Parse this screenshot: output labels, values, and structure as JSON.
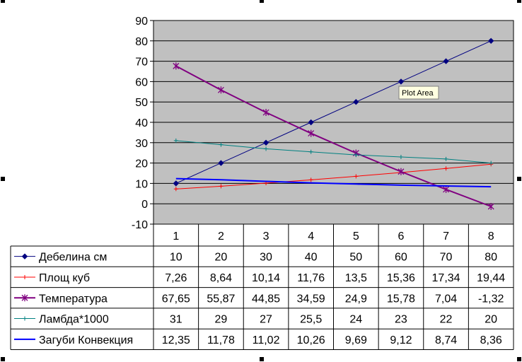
{
  "chart_data": {
    "type": "line",
    "categories": [
      "1",
      "2",
      "3",
      "4",
      "5",
      "6",
      "7",
      "8"
    ],
    "ylim": [
      -10,
      90
    ],
    "yticks": [
      90,
      80,
      70,
      60,
      50,
      40,
      30,
      20,
      10,
      0,
      -10
    ],
    "grid": true,
    "plot_background": "#c0c0c0",
    "legend_placement": "data-table-left",
    "series": [
      {
        "name": "Дебелина см",
        "color": "#000080",
        "marker": "diamond",
        "values": [
          10,
          20,
          30,
          40,
          50,
          60,
          70,
          80
        ],
        "labels": [
          "10",
          "20",
          "30",
          "40",
          "50",
          "60",
          "70",
          "80"
        ]
      },
      {
        "name": "Площ куб",
        "color": "#ff0000",
        "marker": "plus",
        "values": [
          7.26,
          8.64,
          10.14,
          11.76,
          13.5,
          15.36,
          17.34,
          19.44
        ],
        "labels": [
          "7,26",
          "8,64",
          "10,14",
          "11,76",
          "13,5",
          "15,36",
          "17,34",
          "19,44"
        ]
      },
      {
        "name": "Температура",
        "color": "#800080",
        "marker": "asterisk",
        "values": [
          67.65,
          55.87,
          44.85,
          34.59,
          24.9,
          15.78,
          7.04,
          -1.32
        ],
        "labels": [
          "67,65",
          "55,87",
          "44,85",
          "34,59",
          "24,9",
          "15,78",
          "7,04",
          "-1,32"
        ]
      },
      {
        "name": "Ламбда*1000",
        "color": "#008080",
        "marker": "plus",
        "values": [
          31,
          29,
          27,
          25.5,
          24,
          23,
          22,
          20
        ],
        "labels": [
          "31",
          "29",
          "27",
          "25,5",
          "24",
          "23",
          "22",
          "20"
        ]
      },
      {
        "name": "Загуби Конвекция",
        "color": "#0000ff",
        "marker": "none",
        "values": [
          12.35,
          11.78,
          11.02,
          10.26,
          9.69,
          9.12,
          8.74,
          8.36
        ],
        "labels": [
          "12,35",
          "11,78",
          "11,02",
          "10,26",
          "9,69",
          "9,12",
          "8,74",
          "8,36"
        ]
      }
    ]
  },
  "tooltip": {
    "text": "Plot Area"
  }
}
